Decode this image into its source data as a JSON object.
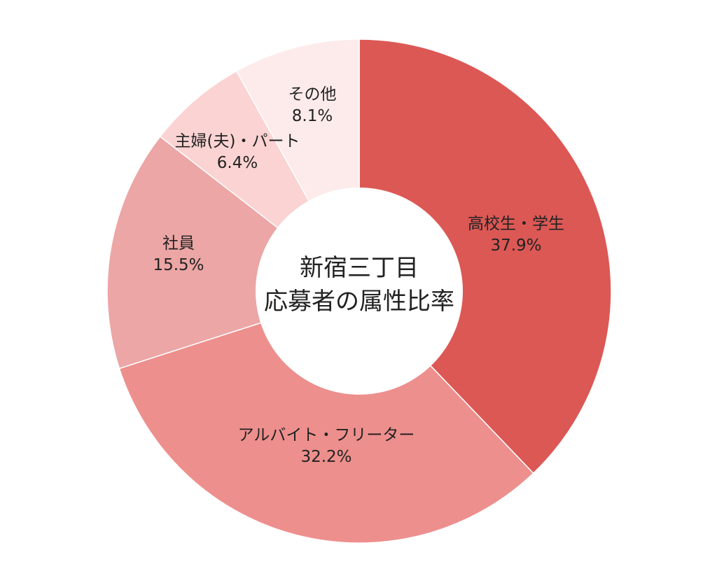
{
  "chart_data": {
    "type": "pie",
    "variant": "donut",
    "title_lines": [
      "新宿三丁目",
      "応募者の属性比率"
    ],
    "slices": [
      {
        "label": "高校生・学生",
        "value": 37.9,
        "value_label": "37.9%",
        "color": "#dc5855"
      },
      {
        "label": "アルバイト・フリーター",
        "value": 32.2,
        "value_label": "32.2%",
        "color": "#ed8f8d"
      },
      {
        "label": "社員",
        "value": 15.5,
        "value_label": "15.5%",
        "color": "#eca6a5"
      },
      {
        "label": "主婦(夫)・パート",
        "value": 6.4,
        "value_label": "6.4%",
        "color": "#fbd3d3"
      },
      {
        "label": "その他",
        "value": 8.1,
        "value_label": "8.1%",
        "color": "#fdebeb"
      }
    ],
    "start": "12 o'clock",
    "direction": "clockwise",
    "legend": "none"
  }
}
